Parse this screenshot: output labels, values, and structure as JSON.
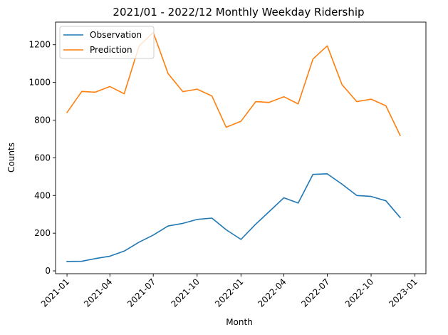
{
  "chart_data": {
    "type": "line",
    "title": "2021/01 - 2022/12 Monthly Weekday Ridership",
    "xlabel": "Month",
    "ylabel": "Counts",
    "legend_position": "top-left",
    "grid": false,
    "x": [
      "2021-01-01",
      "2021-02-01",
      "2021-03-01",
      "2021-04-01",
      "2021-05-01",
      "2021-06-01",
      "2021-07-01",
      "2021-08-01",
      "2021-09-01",
      "2021-10-01",
      "2021-11-01",
      "2021-12-01",
      "2022-01-01",
      "2022-02-01",
      "2022-03-01",
      "2022-04-01",
      "2022-05-01",
      "2022-06-01",
      "2022-07-01",
      "2022-08-01",
      "2022-09-01",
      "2022-10-01",
      "2022-11-01",
      "2022-12-01"
    ],
    "x_range": [
      "2020-12-08",
      "2023-01-24"
    ],
    "ylim": [
      -15,
      1320
    ],
    "x_ticks": [
      "2021-01",
      "2021-04",
      "2021-07",
      "2021-10",
      "2022-01",
      "2022-04",
      "2022-07",
      "2022-10",
      "2023-01"
    ],
    "x_tick_dates": [
      "2021-01-01",
      "2021-04-01",
      "2021-07-01",
      "2021-10-01",
      "2022-01-01",
      "2022-04-01",
      "2022-07-01",
      "2022-10-01",
      "2023-01-01"
    ],
    "y_ticks": [
      0,
      200,
      400,
      600,
      800,
      1000,
      1200
    ],
    "series": [
      {
        "name": "Observation",
        "color": "#1f77b4",
        "values": [
          50,
          51,
          65,
          78,
          105,
          152,
          190,
          238,
          252,
          273,
          280,
          218,
          167,
          248,
          314,
          388,
          360,
          512,
          515,
          460,
          400,
          395,
          372,
          283
        ]
      },
      {
        "name": "Prediction",
        "color": "#ff7f0e",
        "values": [
          840,
          952,
          948,
          978,
          940,
          1192,
          1265,
          1047,
          951,
          964,
          928,
          762,
          794,
          898,
          894,
          924,
          886,
          1124,
          1194,
          988,
          898,
          911,
          876,
          718
        ]
      }
    ]
  }
}
